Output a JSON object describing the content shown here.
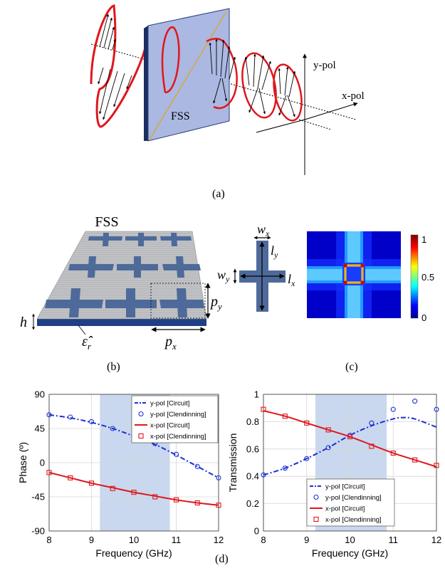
{
  "figure": {
    "panel_a": {
      "label": "(a)",
      "fss_label": "FSS",
      "y_pol_label": "y-pol",
      "x_pol_label": "x-pol"
    },
    "panel_b": {
      "label": "(b)",
      "title": "FSS",
      "h_label": "h",
      "eps_label": "ε̂",
      "eps_sub": "r",
      "px_label": "p",
      "px_sub": "x",
      "py_label": "p",
      "py_sub": "y"
    },
    "panel_c": {
      "label": "(c)",
      "wx": "w",
      "wx_sub": "x",
      "wy": "w",
      "wy_sub": "y",
      "ly": "l",
      "ly_sub": "y",
      "lx": "l",
      "lx_sub": "x",
      "colorbar_ticks": [
        "1",
        "0.5",
        "0"
      ]
    },
    "panel_d": {
      "label": "(d)"
    },
    "colors": {
      "red_curve": "#e0161c",
      "blue_curve": "#1a2fd6",
      "cross": "#4e6a9a",
      "band": "#c9d8ee",
      "fss_panel": "#aab8e2"
    }
  },
  "chart_data": [
    {
      "type": "line",
      "title": "",
      "xlabel": "Frequency (GHz)",
      "ylabel": "Phase (º)",
      "xlim": [
        8,
        12
      ],
      "ylim": [
        -90,
        90
      ],
      "xticks": [
        "8",
        "9",
        "10",
        "11",
        "12"
      ],
      "yticks": [
        "90",
        "45",
        "0",
        "-45",
        "-90"
      ],
      "grid": true,
      "shaded_band": [
        9.2,
        10.85
      ],
      "legend_position": "top-right",
      "series": [
        {
          "name": "y-pol [Circuit]",
          "style": "dash-dot",
          "color": "#1a2fd6",
          "x": [
            8,
            8.5,
            9,
            9.5,
            10,
            10.5,
            11,
            11.5,
            12
          ],
          "y": [
            63,
            59,
            53,
            45,
            35,
            24,
            10,
            -5,
            -20
          ]
        },
        {
          "name": "y-pol [Clendinning]",
          "style": "circle",
          "color": "#1a2fd6",
          "x": [
            8,
            8.5,
            9,
            9.5,
            10,
            10.5,
            11,
            11.5,
            12
          ],
          "y": [
            63,
            60,
            54,
            45,
            36,
            25,
            11,
            -5,
            -20
          ]
        },
        {
          "name": "x-pol [Circuit]",
          "style": "solid",
          "color": "#e0161c",
          "x": [
            8,
            8.5,
            9,
            9.5,
            10,
            10.5,
            11,
            11.5,
            12
          ],
          "y": [
            -13,
            -20,
            -27,
            -33,
            -39,
            -44,
            -49,
            -53,
            -56
          ]
        },
        {
          "name": "x-pol [Clendinning]",
          "style": "square",
          "color": "#e0161c",
          "x": [
            8,
            8.5,
            9,
            9.5,
            10,
            10.5,
            11,
            11.5,
            12
          ],
          "y": [
            -13,
            -20,
            -27,
            -34,
            -39,
            -45,
            -49,
            -53,
            -56
          ]
        }
      ]
    },
    {
      "type": "line",
      "title": "",
      "xlabel": "Frequency (GHz)",
      "ylabel": "Transmission",
      "xlim": [
        8,
        12
      ],
      "ylim": [
        0,
        1
      ],
      "xticks": [
        "8",
        "9",
        "10",
        "11",
        "12"
      ],
      "yticks": [
        "1",
        "0.8",
        "0.6",
        "0.4",
        "0.2",
        "0"
      ],
      "grid": true,
      "shaded_band": [
        9.2,
        10.85
      ],
      "legend_position": "bottom-right",
      "series": [
        {
          "name": "y-pol [Circuit]",
          "style": "dash-dot",
          "color": "#1a2fd6",
          "x": [
            8,
            8.5,
            9,
            9.5,
            10,
            10.5,
            11,
            11.25,
            11.5,
            12
          ],
          "y": [
            0.41,
            0.46,
            0.53,
            0.61,
            0.7,
            0.77,
            0.82,
            0.83,
            0.82,
            0.76
          ]
        },
        {
          "name": "y-pol [Clendinning]",
          "style": "circle",
          "color": "#1a2fd6",
          "x": [
            8,
            8.5,
            9,
            9.5,
            10,
            10.5,
            11,
            11.5,
            12
          ],
          "y": [
            0.41,
            0.46,
            0.53,
            0.61,
            0.7,
            0.79,
            0.89,
            0.95,
            0.89
          ]
        },
        {
          "name": "x-pol [Circuit]",
          "style": "solid",
          "color": "#e0161c",
          "x": [
            8,
            8.5,
            9,
            9.5,
            10,
            10.5,
            11,
            11.5,
            12
          ],
          "y": [
            0.88,
            0.84,
            0.79,
            0.74,
            0.69,
            0.63,
            0.57,
            0.52,
            0.47
          ]
        },
        {
          "name": "x-pol [Clendinning]",
          "style": "square",
          "color": "#e0161c",
          "x": [
            8,
            8.5,
            9,
            9.5,
            10,
            10.5,
            11,
            11.5,
            12
          ],
          "y": [
            0.89,
            0.84,
            0.79,
            0.74,
            0.69,
            0.62,
            0.57,
            0.52,
            0.48
          ]
        }
      ]
    }
  ]
}
